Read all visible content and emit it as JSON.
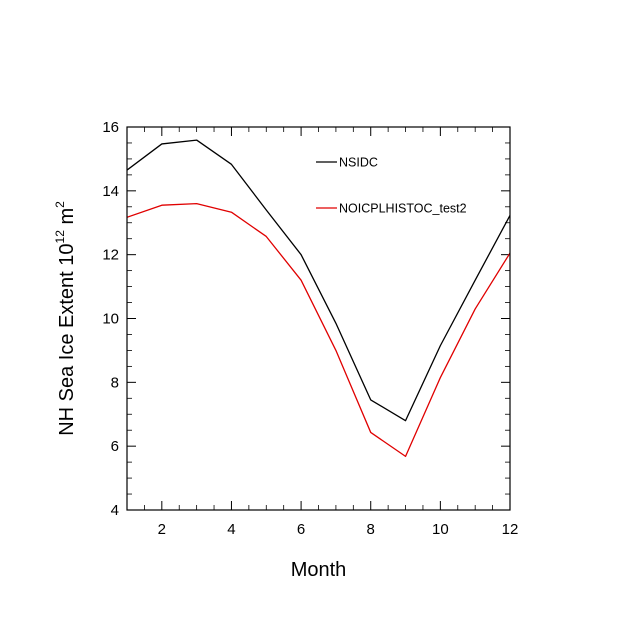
{
  "chart_data": {
    "type": "line",
    "title": "",
    "xlabel": "Month",
    "ylabel": {
      "main": "NH Sea Ice Extent 10",
      "superscript": "12",
      "unit": " m",
      "unit_superscript": "2"
    },
    "xlim": [
      1,
      12
    ],
    "ylim": [
      4,
      16
    ],
    "xticks": [
      2,
      4,
      6,
      8,
      10,
      12
    ],
    "yticks": [
      4,
      6,
      8,
      10,
      12,
      14,
      16
    ],
    "x": [
      1,
      2,
      3,
      4,
      5,
      6,
      7,
      8,
      9,
      10,
      11,
      12
    ],
    "series": [
      {
        "name": "NSIDC",
        "color": "#000000",
        "values": [
          14.65,
          15.47,
          15.59,
          14.83,
          13.4,
          12.0,
          9.85,
          7.45,
          6.8,
          9.15,
          11.2,
          13.23
        ]
      },
      {
        "name": "NOICPLHISTOC_test2",
        "color": "#e00000",
        "values": [
          13.17,
          13.55,
          13.6,
          13.33,
          12.57,
          11.2,
          9.0,
          6.43,
          5.68,
          8.15,
          10.3,
          12.05
        ]
      }
    ],
    "legend_position": "top-right",
    "grid": false
  }
}
